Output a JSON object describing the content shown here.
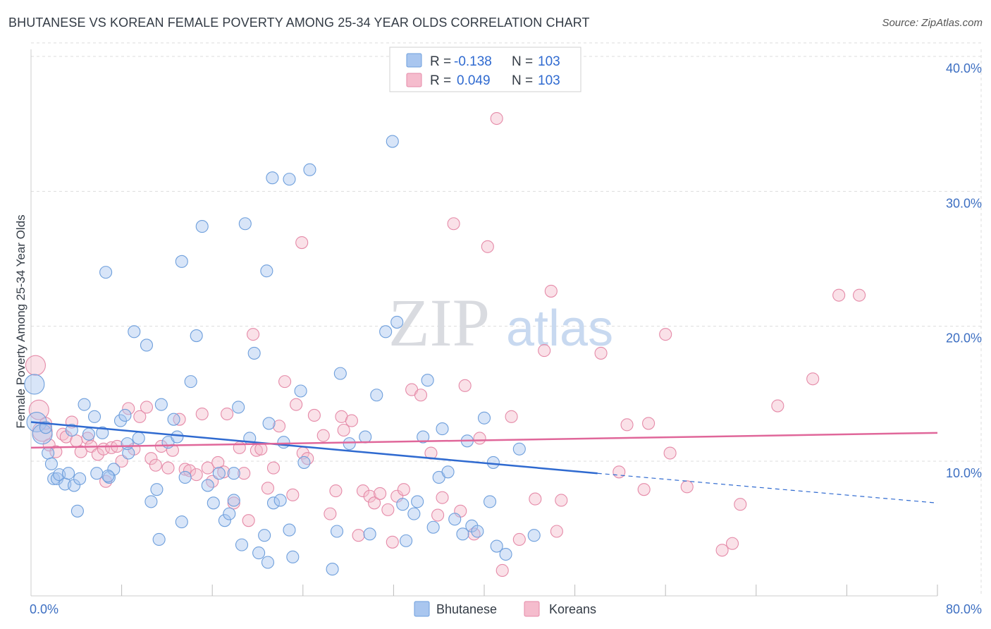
{
  "title": "BHUTANESE VS KOREAN FEMALE POVERTY AMONG 25-34 YEAR OLDS CORRELATION CHART",
  "source": "Source: ZipAtlas.com",
  "watermark": {
    "zip": "ZIP",
    "atlas": "atlas"
  },
  "colors": {
    "bhutanese_fill": "#a9c6ef",
    "bhutanese_stroke": "#6e9fdc",
    "bhutanese_line": "#2f6ad0",
    "koreans_fill": "#f5bccd",
    "koreans_stroke": "#e58aa8",
    "koreans_line": "#e0679a",
    "tick_label": "#3d6fc2",
    "grid": "#dddddd"
  },
  "chart_data": {
    "type": "scatter",
    "xlabel": "",
    "ylabel": "Female Poverty Among 25-34 Year Olds",
    "xlim": [
      0,
      80
    ],
    "ylim": [
      0,
      42
    ],
    "x_tick_labels": [
      {
        "value": 0,
        "label": "0.0%"
      },
      {
        "value": 80,
        "label": "80.0%"
      }
    ],
    "y_tick_labels": [
      {
        "value": 10,
        "label": "10.0%"
      },
      {
        "value": 20,
        "label": "20.0%"
      },
      {
        "value": 30,
        "label": "30.0%"
      },
      {
        "value": 40,
        "label": "40.0%"
      }
    ],
    "x_minor_ticks": [
      8,
      16,
      24,
      32,
      40,
      48,
      56,
      64,
      72,
      80
    ],
    "grid": true,
    "legend": {
      "placement": "top-center",
      "entries": [
        {
          "series": "Bhutanese",
          "r_label": "R =",
          "r_value": "-0.138",
          "n_label": "N =",
          "n_value": "103"
        },
        {
          "series": "Koreans",
          "r_label": "R =",
          "r_value": "0.049",
          "n_label": "N =",
          "n_value": "103"
        }
      ]
    },
    "series": [
      {
        "name": "Bhutanese",
        "trend": {
          "x": [
            0,
            50
          ],
          "y": [
            12.9,
            9.1
          ],
          "dashed_to": [
            80,
            6.9
          ]
        },
        "points": [
          [
            0.3,
            15.7,
            1
          ],
          [
            0.5,
            12.9,
            1
          ],
          [
            1.0,
            12.0,
            1
          ],
          [
            1.3,
            12.5,
            0
          ],
          [
            1.5,
            10.6,
            0
          ],
          [
            1.8,
            9.8,
            0
          ],
          [
            2.0,
            8.7,
            0
          ],
          [
            2.3,
            8.7,
            0
          ],
          [
            2.5,
            9.0,
            0
          ],
          [
            3.0,
            8.3,
            0
          ],
          [
            3.3,
            9.1,
            0
          ],
          [
            3.6,
            12.3,
            0
          ],
          [
            3.8,
            8.2,
            0
          ],
          [
            4.1,
            6.3,
            0
          ],
          [
            4.3,
            8.7,
            0
          ],
          [
            4.7,
            14.2,
            0
          ],
          [
            5.1,
            12.0,
            0
          ],
          [
            5.6,
            13.3,
            0
          ],
          [
            5.8,
            9.1,
            0
          ],
          [
            6.3,
            12.1,
            0
          ],
          [
            6.6,
            24.0,
            0
          ],
          [
            6.9,
            8.8,
            0
          ],
          [
            7.3,
            9.4,
            0
          ],
          [
            7.9,
            13.0,
            0
          ],
          [
            8.3,
            13.4,
            0
          ],
          [
            8.6,
            10.6,
            0
          ],
          [
            9.1,
            19.6,
            0
          ],
          [
            9.5,
            11.7,
            0
          ],
          [
            10.2,
            18.6,
            0
          ],
          [
            10.6,
            7.0,
            0
          ],
          [
            11.1,
            7.9,
            0
          ],
          [
            11.5,
            14.2,
            0
          ],
          [
            12.1,
            11.4,
            0
          ],
          [
            12.6,
            13.1,
            0
          ],
          [
            12.9,
            11.8,
            0
          ],
          [
            13.3,
            5.5,
            0
          ],
          [
            13.6,
            8.8,
            0
          ],
          [
            14.1,
            15.9,
            0
          ],
          [
            14.6,
            19.3,
            0
          ],
          [
            15.1,
            27.4,
            0
          ],
          [
            15.6,
            8.2,
            0
          ],
          [
            16.1,
            6.9,
            0
          ],
          [
            16.6,
            9.1,
            0
          ],
          [
            17.1,
            5.6,
            0
          ],
          [
            17.5,
            6.1,
            0
          ],
          [
            17.9,
            9.1,
            0
          ],
          [
            18.3,
            14.0,
            0
          ],
          [
            18.6,
            3.8,
            0
          ],
          [
            18.9,
            27.6,
            0
          ],
          [
            19.3,
            11.7,
            0
          ],
          [
            19.7,
            18.0,
            0
          ],
          [
            20.1,
            3.2,
            0
          ],
          [
            20.6,
            4.5,
            0
          ],
          [
            20.8,
            24.1,
            0
          ],
          [
            21.0,
            12.8,
            0
          ],
          [
            21.4,
            6.9,
            0
          ],
          [
            22.0,
            7.1,
            0
          ],
          [
            22.3,
            11.4,
            0
          ],
          [
            22.8,
            4.9,
            0
          ],
          [
            23.1,
            2.9,
            0
          ],
          [
            23.8,
            15.2,
            0
          ],
          [
            24.1,
            9.9,
            0
          ],
          [
            26.6,
            2.0,
            0
          ],
          [
            27.0,
            4.8,
            0
          ],
          [
            27.3,
            16.5,
            0
          ],
          [
            28.1,
            11.3,
            0
          ],
          [
            29.5,
            11.8,
            0
          ],
          [
            29.9,
            4.6,
            0
          ],
          [
            30.5,
            14.9,
            0
          ],
          [
            31.3,
            19.6,
            0
          ],
          [
            31.9,
            33.7,
            0
          ],
          [
            32.3,
            20.3,
            0
          ],
          [
            32.8,
            6.8,
            0
          ],
          [
            33.1,
            4.1,
            0
          ],
          [
            33.8,
            6.1,
            0
          ],
          [
            34.1,
            7.0,
            0
          ],
          [
            34.6,
            11.8,
            0
          ],
          [
            35.0,
            16.0,
            0
          ],
          [
            35.5,
            5.1,
            0
          ],
          [
            36.0,
            8.8,
            0
          ],
          [
            36.3,
            12.4,
            0
          ],
          [
            36.8,
            9.2,
            0
          ],
          [
            37.4,
            5.7,
            0
          ],
          [
            38.1,
            4.6,
            0
          ],
          [
            38.5,
            11.5,
            0
          ],
          [
            38.9,
            5.2,
            0
          ],
          [
            39.4,
            4.8,
            0
          ],
          [
            40.0,
            13.2,
            0
          ],
          [
            40.5,
            7.0,
            0
          ],
          [
            40.8,
            9.9,
            0
          ],
          [
            41.1,
            3.7,
            0
          ],
          [
            41.9,
            3.1,
            0
          ],
          [
            43.1,
            10.9,
            0
          ],
          [
            44.4,
            4.5,
            0
          ],
          [
            6.8,
            8.9,
            0
          ],
          [
            13.3,
            24.8,
            0
          ],
          [
            17.9,
            7.1,
            0
          ],
          [
            21.3,
            31.0,
            0
          ],
          [
            22.8,
            30.9,
            0
          ],
          [
            24.6,
            31.6,
            0
          ],
          [
            8.5,
            11.3,
            0
          ],
          [
            11.3,
            4.2,
            0
          ],
          [
            20.9,
            2.5,
            0
          ]
        ]
      },
      {
        "name": "Koreans",
        "trend": {
          "x": [
            0,
            80
          ],
          "y": [
            11.0,
            12.1
          ]
        },
        "points": [
          [
            0.4,
            17.1,
            1
          ],
          [
            0.7,
            13.8,
            1
          ],
          [
            1.0,
            12.2,
            1
          ],
          [
            1.3,
            12.8,
            0
          ],
          [
            1.6,
            11.2,
            0
          ],
          [
            2.2,
            10.7,
            0
          ],
          [
            2.8,
            12.0,
            0
          ],
          [
            3.1,
            11.8,
            0
          ],
          [
            3.6,
            12.9,
            0
          ],
          [
            4.0,
            11.5,
            0
          ],
          [
            4.4,
            10.7,
            0
          ],
          [
            5.0,
            11.7,
            0
          ],
          [
            5.3,
            11.1,
            0
          ],
          [
            5.9,
            10.5,
            0
          ],
          [
            6.4,
            10.9,
            0
          ],
          [
            6.6,
            8.5,
            0
          ],
          [
            7.1,
            11.0,
            0
          ],
          [
            7.6,
            11.1,
            0
          ],
          [
            8.0,
            10.0,
            0
          ],
          [
            8.6,
            13.9,
            0
          ],
          [
            9.1,
            10.9,
            0
          ],
          [
            9.6,
            13.3,
            0
          ],
          [
            10.2,
            14.0,
            0
          ],
          [
            10.6,
            10.2,
            0
          ],
          [
            11.0,
            9.7,
            0
          ],
          [
            11.5,
            11.1,
            0
          ],
          [
            12.1,
            9.5,
            0
          ],
          [
            12.5,
            10.8,
            0
          ],
          [
            13.1,
            13.1,
            0
          ],
          [
            13.6,
            9.4,
            0
          ],
          [
            14.0,
            9.3,
            0
          ],
          [
            14.6,
            9.0,
            0
          ],
          [
            15.1,
            13.5,
            0
          ],
          [
            15.6,
            9.5,
            0
          ],
          [
            16.0,
            8.5,
            0
          ],
          [
            16.5,
            9.9,
            0
          ],
          [
            17.0,
            9.2,
            0
          ],
          [
            17.3,
            13.5,
            0
          ],
          [
            17.9,
            6.9,
            0
          ],
          [
            18.4,
            11.0,
            0
          ],
          [
            18.8,
            9.1,
            0
          ],
          [
            19.2,
            5.6,
            0
          ],
          [
            19.6,
            19.4,
            0
          ],
          [
            19.9,
            10.8,
            0
          ],
          [
            20.3,
            10.9,
            0
          ],
          [
            20.9,
            8.0,
            0
          ],
          [
            21.4,
            9.5,
            0
          ],
          [
            21.9,
            12.6,
            0
          ],
          [
            22.4,
            15.9,
            0
          ],
          [
            23.1,
            7.5,
            0
          ],
          [
            23.4,
            14.2,
            0
          ],
          [
            24.0,
            10.6,
            0
          ],
          [
            24.4,
            10.2,
            0
          ],
          [
            25.0,
            13.4,
            0
          ],
          [
            25.8,
            11.9,
            0
          ],
          [
            26.4,
            6.1,
            0
          ],
          [
            26.9,
            7.8,
            0
          ],
          [
            27.4,
            13.3,
            0
          ],
          [
            27.6,
            12.3,
            0
          ],
          [
            28.3,
            13.0,
            0
          ],
          [
            28.9,
            4.5,
            0
          ],
          [
            29.3,
            7.8,
            0
          ],
          [
            29.9,
            7.4,
            0
          ],
          [
            30.3,
            6.9,
            0
          ],
          [
            30.8,
            7.6,
            0
          ],
          [
            31.5,
            6.4,
            0
          ],
          [
            31.9,
            4.0,
            0
          ],
          [
            32.3,
            7.4,
            0
          ],
          [
            32.9,
            7.9,
            0
          ],
          [
            33.6,
            15.3,
            0
          ],
          [
            34.4,
            14.9,
            0
          ],
          [
            35.3,
            10.6,
            0
          ],
          [
            35.9,
            6.0,
            0
          ],
          [
            36.3,
            7.3,
            0
          ],
          [
            37.3,
            27.6,
            0
          ],
          [
            37.9,
            6.3,
            0
          ],
          [
            38.3,
            15.6,
            0
          ],
          [
            39.1,
            4.6,
            0
          ],
          [
            39.6,
            11.7,
            0
          ],
          [
            40.3,
            25.9,
            0
          ],
          [
            41.1,
            35.4,
            0
          ],
          [
            41.6,
            1.9,
            0
          ],
          [
            42.4,
            13.3,
            0
          ],
          [
            43.1,
            4.2,
            0
          ],
          [
            44.5,
            7.2,
            0
          ],
          [
            45.3,
            18.2,
            0
          ],
          [
            45.9,
            22.6,
            0
          ],
          [
            46.4,
            4.8,
            0
          ],
          [
            46.8,
            7.1,
            0
          ],
          [
            50.3,
            18.0,
            0
          ],
          [
            51.9,
            9.2,
            0
          ],
          [
            52.6,
            12.7,
            0
          ],
          [
            54.1,
            7.9,
            0
          ],
          [
            54.5,
            12.8,
            0
          ],
          [
            56.0,
            19.4,
            0
          ],
          [
            56.4,
            10.6,
            0
          ],
          [
            57.9,
            8.1,
            0
          ],
          [
            61.0,
            3.4,
            0
          ],
          [
            61.9,
            3.9,
            0
          ],
          [
            62.6,
            6.8,
            0
          ],
          [
            69.0,
            16.1,
            0
          ],
          [
            71.3,
            22.3,
            0
          ],
          [
            73.1,
            22.3,
            0
          ],
          [
            23.9,
            26.2,
            0
          ],
          [
            65.9,
            14.1,
            0
          ]
        ]
      }
    ],
    "bottom_legend": [
      {
        "series": "Bhutanese",
        "label": "Bhutanese"
      },
      {
        "series": "Koreans",
        "label": "Koreans"
      }
    ]
  }
}
